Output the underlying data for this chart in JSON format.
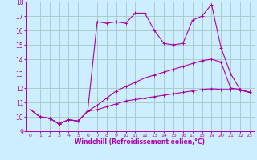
{
  "bg_color": "#cceeff",
  "grid_color": "#aacccc",
  "line_color": "#aa00aa",
  "xlabel": "Windchill (Refroidissement éolien,°C)",
  "xlim": [
    -0.5,
    23.5
  ],
  "ylim": [
    9,
    18
  ],
  "yticks": [
    9,
    10,
    11,
    12,
    13,
    14,
    15,
    16,
    17,
    18
  ],
  "xticks": [
    0,
    1,
    2,
    3,
    4,
    5,
    6,
    7,
    8,
    9,
    10,
    11,
    12,
    13,
    14,
    15,
    16,
    17,
    18,
    19,
    20,
    21,
    22,
    23
  ],
  "line1_x": [
    0,
    1,
    2,
    3,
    4,
    5,
    6,
    7,
    8,
    9,
    10,
    11,
    12,
    13,
    14,
    15,
    16,
    17,
    18,
    19,
    20,
    21,
    22,
    23
  ],
  "line1_y": [
    10.5,
    10.0,
    9.9,
    9.5,
    9.8,
    9.7,
    10.4,
    16.6,
    16.5,
    16.6,
    16.5,
    17.2,
    17.2,
    16.0,
    15.1,
    15.0,
    15.1,
    16.7,
    17.0,
    17.8,
    14.8,
    13.0,
    11.9,
    11.7
  ],
  "line2_x": [
    0,
    1,
    2,
    3,
    4,
    5,
    6,
    7,
    8,
    9,
    10,
    11,
    12,
    13,
    14,
    15,
    16,
    17,
    18,
    19,
    20,
    21,
    22,
    23
  ],
  "line2_y": [
    10.5,
    10.0,
    9.9,
    9.5,
    9.8,
    9.7,
    10.4,
    10.8,
    11.3,
    11.8,
    12.1,
    12.4,
    12.7,
    12.9,
    13.1,
    13.3,
    13.5,
    13.7,
    13.9,
    14.0,
    13.8,
    12.0,
    11.9,
    11.7
  ],
  "line3_x": [
    0,
    1,
    2,
    3,
    4,
    5,
    6,
    7,
    8,
    9,
    10,
    11,
    12,
    13,
    14,
    15,
    16,
    17,
    18,
    19,
    20,
    21,
    22,
    23
  ],
  "line3_y": [
    10.5,
    10.0,
    9.9,
    9.5,
    9.8,
    9.7,
    10.4,
    10.5,
    10.7,
    10.9,
    11.1,
    11.2,
    11.3,
    11.4,
    11.5,
    11.6,
    11.7,
    11.8,
    11.9,
    11.95,
    11.9,
    11.9,
    11.85,
    11.7
  ]
}
